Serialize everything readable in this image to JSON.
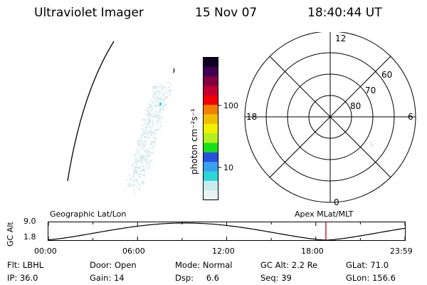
{
  "header": {
    "instrument": "Ultraviolet Imager",
    "date": "15 Nov 07",
    "time": "18:40:44 UT"
  },
  "colorbar": {
    "label": "photon cm⁻²s⁻¹",
    "ticks": [
      "100",
      "10"
    ],
    "colors": [
      "#e8f4f4",
      "#c8ecec",
      "#2cd6d6",
      "#3aa0f0",
      "#2850e0",
      "#18e018",
      "#b4f020",
      "#f0f000",
      "#f0c000",
      "#f08000",
      "#f00000",
      "#c00030",
      "#800040",
      "#400050",
      "#100020"
    ]
  },
  "polar": {
    "lat_labels": [
      "60",
      "70",
      "80"
    ],
    "mlt_labels": {
      "top": "12",
      "left": "18",
      "right": "6",
      "bottom": "0"
    }
  },
  "timeline": {
    "axis_label": "GC Alt",
    "y_top": "9.0",
    "y_bottom": "1.8",
    "left_caption": "Geographic Lat/Lon",
    "right_caption": "Apex MLat/MLT",
    "ticks": [
      "00:00",
      "06:00",
      "12:00",
      "18:00",
      "23:59"
    ],
    "current_marker_color": "#cc0000"
  },
  "info": {
    "row1": [
      {
        "label": "Flt:",
        "value": "LBHL"
      },
      {
        "label": "Door:",
        "value": "Open"
      },
      {
        "label": "Mode:",
        "value": "Normal"
      },
      {
        "label": "GC Alt:",
        "value": "2.2 Re"
      },
      {
        "label": "GLat:",
        "value": "71.0"
      }
    ],
    "row2": [
      {
        "label": "IP:",
        "value": "36.0"
      },
      {
        "label": "Gain:",
        "value": "14"
      },
      {
        "label": "Dsp:",
        "value": "6.6"
      },
      {
        "label": "Seq:",
        "value": "39"
      },
      {
        "label": "GLon:",
        "value": "156.6"
      }
    ]
  }
}
